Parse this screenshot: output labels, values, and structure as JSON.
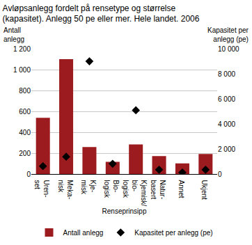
{
  "chart_data": {
    "type": "bar",
    "title": "Avløpsanlegg fordelt på rensetype og størrelse\n(kapasitet). Anlegg 50 pe eller mer. Hele landet. 2006",
    "x_label": "Renseprinsipp",
    "y_label": "Antall\nanlegg",
    "y2_label": "Kapasitet per\nanlegg (pe)",
    "categories": [
      "Uren-\nset",
      "Meka-\nnisk",
      "Kje-\nmisk",
      "Bio-\nlogisk",
      "Kjemisk/\nbio-\nlogisk",
      "Natur-\nbasert",
      "Annet",
      "Ukjent"
    ],
    "series": [
      {
        "name": "Antall anlegg",
        "type": "bar",
        "color": "#9b1b1e",
        "values": [
          540,
          1100,
          260,
          120,
          285,
          175,
          105,
          195
        ]
      },
      {
        "name": "Kapasitet per anlegg (pe)",
        "type": "scatter",
        "axis": "y2",
        "color": "#000000",
        "marker": "diamond",
        "values": [
          650,
          1400,
          9000,
          840,
          5100,
          370,
          150,
          370
        ]
      }
    ],
    "ylim": [
      0,
      1200
    ],
    "yticks": [
      0,
      200,
      400,
      600,
      800,
      {
        "value": 1000,
        "label": "1 000"
      },
      {
        "value": 1200,
        "label": "1 200"
      }
    ],
    "y2lim": [
      0,
      10000
    ],
    "y2ticks": [
      0,
      {
        "value": 2000,
        "label": "2 000"
      },
      {
        "value": 4000,
        "label": "4 000"
      },
      {
        "value": 6000,
        "label": "6 000"
      },
      {
        "value": 8000,
        "label": "8 000"
      },
      {
        "value": 10000,
        "label": "10 000"
      }
    ],
    "grid": true,
    "legend": "bottom"
  }
}
